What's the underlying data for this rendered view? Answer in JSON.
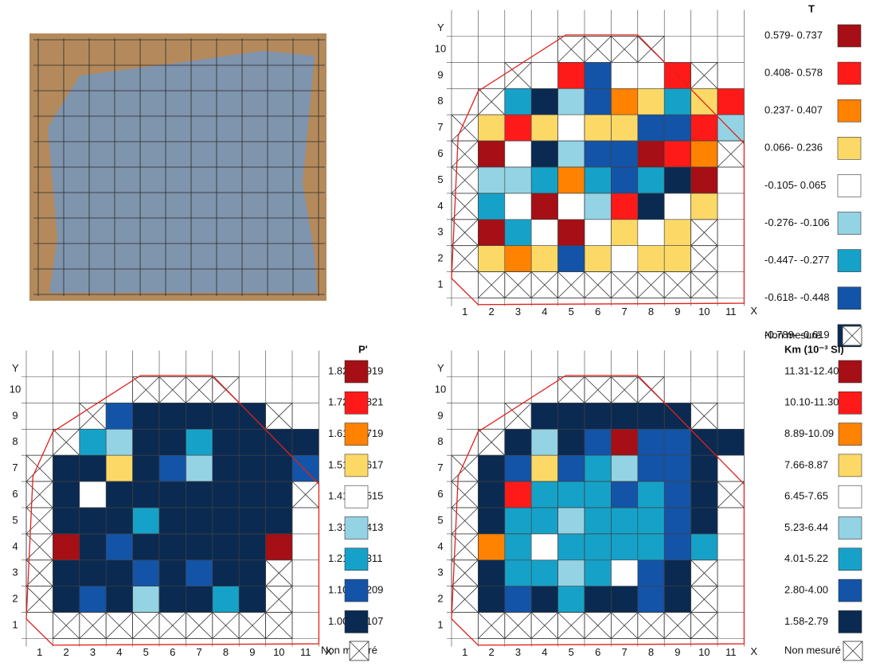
{
  "chart_data": [
    {
      "type": "grid-map",
      "title": "T",
      "x_label": "X",
      "y_label": "Y",
      "xticks": [
        1,
        2,
        3,
        4,
        5,
        6,
        7,
        8,
        9,
        10,
        11
      ],
      "yticks": [
        1,
        2,
        3,
        4,
        5,
        6,
        7,
        8,
        9,
        10
      ],
      "legend": [
        {
          "label": "0.579- 0.737",
          "color": "#a50f15"
        },
        {
          "label": "0.408- 0.578",
          "color": "#ff1a1a"
        },
        {
          "label": "0.237- 0.407",
          "color": "#ff8200"
        },
        {
          "label": "0.066- 0.236",
          "color": "#fcd966"
        },
        {
          "label": "-0.105- 0.065",
          "color": "#ffffff"
        },
        {
          "label": "-0.276- -0.106",
          "color": "#93d3e4"
        },
        {
          "label": "-0.447- -0.277",
          "color": "#16a2c8"
        },
        {
          "label": "-0.618- -0.448",
          "color": "#1354a8"
        },
        {
          "label": "-0.789- -0.619",
          "color": "#0b2a52"
        },
        {
          "label": "Non mesuré",
          "hatch": true
        }
      ],
      "cells": [
        [
          null,
          null,
          null,
          null,
          9,
          9,
          9,
          9,
          null,
          null,
          null
        ],
        [
          null,
          null,
          9,
          4,
          1,
          7,
          4,
          4,
          1,
          9,
          null
        ],
        [
          null,
          9,
          6,
          8,
          5,
          7,
          2,
          3,
          6,
          3,
          1
        ],
        [
          9,
          3,
          1,
          3,
          4,
          3,
          3,
          7,
          7,
          1,
          5
        ],
        [
          9,
          0,
          4,
          8,
          5,
          7,
          7,
          0,
          1,
          2,
          9
        ],
        [
          9,
          5,
          5,
          6,
          2,
          6,
          7,
          6,
          8,
          0,
          null
        ],
        [
          9,
          6,
          4,
          0,
          4,
          5,
          1,
          8,
          4,
          3,
          null
        ],
        [
          9,
          0,
          6,
          4,
          0,
          4,
          3,
          4,
          3,
          9,
          null
        ],
        [
          9,
          3,
          2,
          3,
          7,
          3,
          4,
          3,
          3,
          9,
          null
        ],
        [
          null,
          9,
          9,
          9,
          9,
          9,
          9,
          9,
          9,
          9,
          null
        ]
      ]
    },
    {
      "type": "grid-map",
      "title": "P'",
      "x_label": "X",
      "y_label": "Y",
      "xticks": [
        1,
        2,
        3,
        4,
        5,
        6,
        7,
        8,
        9,
        10,
        11
      ],
      "yticks": [
        1,
        2,
        3,
        4,
        5,
        6,
        7,
        8,
        9,
        10
      ],
      "legend": [
        {
          "label": "1.822-1.919",
          "color": "#a50f15"
        },
        {
          "label": "1.720-1.821",
          "color": "#ff1a1a"
        },
        {
          "label": "1.618-1.719",
          "color": "#ff8200"
        },
        {
          "label": "1.516-1.617",
          "color": "#fcd966"
        },
        {
          "label": "1.414-1.515",
          "color": "#ffffff"
        },
        {
          "label": "1.312-1.413",
          "color": "#93d3e4"
        },
        {
          "label": "1.210-1.311",
          "color": "#16a2c8"
        },
        {
          "label": "1.108-1.209",
          "color": "#1354a8"
        },
        {
          "label": "1.006-1.107",
          "color": "#0b2a52"
        },
        {
          "label": "Non mesuré",
          "hatch": true
        }
      ],
      "cells": [
        [
          null,
          null,
          null,
          null,
          9,
          9,
          9,
          9,
          null,
          null,
          null
        ],
        [
          null,
          null,
          9,
          7,
          8,
          8,
          8,
          8,
          8,
          9,
          null
        ],
        [
          null,
          9,
          6,
          5,
          8,
          8,
          6,
          8,
          8,
          8,
          8
        ],
        [
          9,
          8,
          8,
          3,
          8,
          7,
          5,
          8,
          8,
          8,
          7
        ],
        [
          9,
          8,
          4,
          8,
          8,
          8,
          8,
          8,
          8,
          8,
          9
        ],
        [
          9,
          8,
          8,
          8,
          6,
          8,
          8,
          8,
          8,
          8,
          null
        ],
        [
          9,
          0,
          8,
          7,
          8,
          8,
          8,
          8,
          8,
          0,
          null
        ],
        [
          9,
          8,
          8,
          8,
          7,
          8,
          7,
          8,
          8,
          9,
          null
        ],
        [
          9,
          8,
          7,
          8,
          5,
          8,
          8,
          6,
          8,
          9,
          null
        ],
        [
          null,
          9,
          9,
          9,
          9,
          9,
          9,
          9,
          9,
          9,
          null
        ]
      ]
    },
    {
      "type": "grid-map",
      "title": "Km (10⁻³ SI)",
      "x_label": "X",
      "y_label": "Y",
      "xticks": [
        1,
        2,
        3,
        4,
        5,
        6,
        7,
        8,
        9,
        10,
        11
      ],
      "yticks": [
        1,
        2,
        3,
        4,
        5,
        6,
        7,
        8,
        9,
        10
      ],
      "legend": [
        {
          "label": "11.31-12.40",
          "color": "#a50f15"
        },
        {
          "label": "10.10-11.30",
          "color": "#ff1a1a"
        },
        {
          "label": "8.89-10.09",
          "color": "#ff8200"
        },
        {
          "label": "7.66-8.87",
          "color": "#fcd966"
        },
        {
          "label": "6.45-7.65",
          "color": "#ffffff"
        },
        {
          "label": "5.23-6.44",
          "color": "#93d3e4"
        },
        {
          "label": "4.01-5.22",
          "color": "#16a2c8"
        },
        {
          "label": "2.80-4.00",
          "color": "#1354a8"
        },
        {
          "label": "1.58-2.79",
          "color": "#0b2a52"
        },
        {
          "label": "Non mesuré",
          "hatch": true
        }
      ],
      "cells": [
        [
          null,
          null,
          null,
          null,
          9,
          9,
          9,
          9,
          null,
          null,
          null
        ],
        [
          null,
          null,
          9,
          8,
          8,
          8,
          8,
          8,
          8,
          9,
          null
        ],
        [
          null,
          9,
          8,
          5,
          8,
          7,
          0,
          7,
          7,
          8,
          8
        ],
        [
          9,
          8,
          7,
          3,
          7,
          6,
          5,
          7,
          7,
          8,
          4
        ],
        [
          9,
          8,
          1,
          6,
          6,
          6,
          7,
          6,
          7,
          8,
          9
        ],
        [
          9,
          8,
          6,
          6,
          5,
          6,
          6,
          6,
          7,
          8,
          null
        ],
        [
          9,
          2,
          6,
          4,
          6,
          6,
          6,
          6,
          7,
          6,
          null
        ],
        [
          9,
          8,
          6,
          6,
          5,
          6,
          4,
          7,
          8,
          9,
          null
        ],
        [
          9,
          8,
          7,
          8,
          6,
          8,
          8,
          7,
          8,
          9,
          null
        ],
        [
          null,
          9,
          9,
          9,
          9,
          9,
          9,
          9,
          9,
          9,
          null
        ]
      ]
    }
  ]
}
